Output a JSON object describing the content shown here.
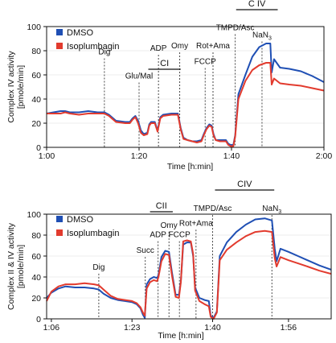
{
  "chart_data": [
    {
      "type": "line",
      "xlabel": "Time [h:min]",
      "ylabel": "Complex IV activity\n[pmole/min]",
      "xlim": [
        60,
        120
      ],
      "ylim": [
        0,
        100
      ],
      "xticks": [
        {
          "value": 60,
          "label": "1:00"
        },
        {
          "value": 80,
          "label": "1:20"
        },
        {
          "value": 100,
          "label": "1:40"
        },
        {
          "value": 120,
          "label": "2:00"
        }
      ],
      "yticks": [
        0,
        20,
        40,
        60,
        80,
        100
      ],
      "legend": {
        "placement": "top-left",
        "entries": [
          "DMSO",
          "Isoplumbagin"
        ]
      },
      "events": [
        {
          "x": 72.5,
          "label": "Dig",
          "label_y": 77
        },
        {
          "x": 80.0,
          "label": "Glu/Mal",
          "label_y": 57
        },
        {
          "x": 84.2,
          "label": "ADP",
          "label_y": 80
        },
        {
          "x": 88.8,
          "label": "Omy",
          "label_y": 82
        },
        {
          "x": 94.3,
          "label": "FCCP",
          "label_y": 69
        },
        {
          "x": 96.0,
          "label": "Rot+Ama",
          "label_y": 82
        },
        {
          "x": 100.8,
          "label": "TMPD/Asc",
          "label_y": 97
        },
        {
          "x": 106.6,
          "label": "NaN",
          "sub": "3",
          "label_y": 91
        }
      ],
      "brackets": [
        {
          "x1": 82.0,
          "x2": 89.0,
          "label": "CI"
        },
        {
          "x1": 101.0,
          "x2": 110.0,
          "label": "C IV"
        }
      ],
      "series": [
        {
          "name": "DMSO",
          "color": "#1f4fb4",
          "points": [
            [
              60,
              28
            ],
            [
              61.5,
              29
            ],
            [
              63,
              30
            ],
            [
              64,
              30
            ],
            [
              65,
              29
            ],
            [
              67,
              29
            ],
            [
              69,
              30
            ],
            [
              71,
              29
            ],
            [
              72.5,
              29
            ],
            [
              73.5,
              27
            ],
            [
              75,
              22
            ],
            [
              77,
              21
            ],
            [
              78,
              21
            ],
            [
              78.6,
              24
            ],
            [
              79.2,
              26
            ],
            [
              79.8,
              22
            ],
            [
              80.4,
              14
            ],
            [
              81,
              11
            ],
            [
              81.8,
              12
            ],
            [
              82.2,
              19
            ],
            [
              82.6,
              21
            ],
            [
              83.4,
              21
            ],
            [
              84,
              14
            ],
            [
              84.6,
              25
            ],
            [
              85.2,
              27
            ],
            [
              87,
              28
            ],
            [
              88.4,
              28
            ],
            [
              89,
              16
            ],
            [
              89.6,
              8
            ],
            [
              90.5,
              6
            ],
            [
              91.5,
              5
            ],
            [
              92.5,
              5
            ],
            [
              93.5,
              6
            ],
            [
              94,
              11
            ],
            [
              94.6,
              16
            ],
            [
              95.2,
              19
            ],
            [
              95.7,
              18
            ],
            [
              96.1,
              11
            ],
            [
              96.6,
              6
            ],
            [
              97.5,
              6
            ],
            [
              98.8,
              6
            ],
            [
              99.3,
              3
            ],
            [
              99.8,
              2
            ],
            [
              100.4,
              2
            ],
            [
              100.8,
              10
            ],
            [
              101.5,
              44
            ],
            [
              103,
              60
            ],
            [
              104.5,
              75
            ],
            [
              106,
              83
            ],
            [
              107.5,
              86
            ],
            [
              108.4,
              86
            ],
            [
              108.7,
              62
            ],
            [
              109.2,
              73
            ],
            [
              110.5,
              66
            ],
            [
              112.5,
              65
            ],
            [
              115,
              63
            ],
            [
              117.5,
              59
            ],
            [
              120,
              54
            ]
          ]
        },
        {
          "name": "Isoplumbagin",
          "color": "#e23b2e",
          "points": [
            [
              60,
              28
            ],
            [
              61.5,
              28
            ],
            [
              63,
              28
            ],
            [
              64,
              29
            ],
            [
              65,
              28
            ],
            [
              67,
              27
            ],
            [
              69,
              28
            ],
            [
              71,
              28
            ],
            [
              72.5,
              28
            ],
            [
              73.5,
              26
            ],
            [
              75,
              21
            ],
            [
              77,
              20
            ],
            [
              78,
              20
            ],
            [
              78.6,
              23
            ],
            [
              79.2,
              25
            ],
            [
              79.8,
              20
            ],
            [
              80.4,
              12
            ],
            [
              81,
              10
            ],
            [
              81.8,
              11
            ],
            [
              82.2,
              18
            ],
            [
              82.6,
              20
            ],
            [
              83.4,
              20
            ],
            [
              84,
              13
            ],
            [
              84.6,
              24
            ],
            [
              85.2,
              26
            ],
            [
              87,
              27
            ],
            [
              88.4,
              27
            ],
            [
              89,
              15
            ],
            [
              89.6,
              7
            ],
            [
              90.5,
              6
            ],
            [
              91.5,
              5
            ],
            [
              92.5,
              4
            ],
            [
              93.5,
              5
            ],
            [
              94,
              10
            ],
            [
              94.6,
              15
            ],
            [
              95.2,
              18
            ],
            [
              95.7,
              17
            ],
            [
              96.1,
              10
            ],
            [
              96.6,
              6
            ],
            [
              97.5,
              5
            ],
            [
              98.8,
              5
            ],
            [
              99.3,
              2
            ],
            [
              99.8,
              1
            ],
            [
              100.4,
              1
            ],
            [
              100.8,
              9
            ],
            [
              101.5,
              40
            ],
            [
              103,
              55
            ],
            [
              104.5,
              64
            ],
            [
              106,
              68
            ],
            [
              107.5,
              70
            ],
            [
              108.4,
              70
            ],
            [
              108.7,
              52
            ],
            [
              109.2,
              57
            ],
            [
              110.5,
              53
            ],
            [
              112.5,
              52
            ],
            [
              115,
              51
            ],
            [
              117.5,
              49
            ],
            [
              120,
              47
            ]
          ]
        }
      ]
    },
    {
      "type": "line",
      "xlabel": "Time [h:min]",
      "ylabel": "Complex II & IV activity\n[pmole/min]",
      "xlim": [
        65,
        125
      ],
      "ylim": [
        0,
        100
      ],
      "xticks": [
        {
          "value": 66,
          "label": "1:06"
        },
        {
          "value": 83,
          "label": "1:23"
        },
        {
          "value": 100,
          "label": "1:40"
        },
        {
          "value": 116,
          "label": "1:56"
        }
      ],
      "yticks": [
        0,
        20,
        40,
        60,
        80,
        100
      ],
      "legend": {
        "placement": "top-left",
        "entries": [
          "DMSO",
          "Isoplumbagin"
        ]
      },
      "events": [
        {
          "x": 76.0,
          "label": "Dig",
          "label_y": 47
        },
        {
          "x": 85.8,
          "label": "Succ",
          "label_y": 63
        },
        {
          "x": 88.5,
          "label": "ADP",
          "label_y": 78
        },
        {
          "x": 90.8,
          "label": "Omy",
          "label_y": 87
        },
        {
          "x": 93.0,
          "label": "FCCP",
          "label_y": 78
        },
        {
          "x": 96.5,
          "label": "Rot+Ama",
          "label_y": 89
        },
        {
          "x": 100.0,
          "label": "TMPD/Asc",
          "label_y": 103
        },
        {
          "x": 112.5,
          "label": "NaN",
          "sub": "3",
          "label_y": 103
        }
      ],
      "brackets": [
        {
          "x1": 86.8,
          "x2": 91.6,
          "label": "CII"
        },
        {
          "x1": 100.5,
          "x2": 113.0,
          "label": "CIV"
        }
      ],
      "series": [
        {
          "name": "DMSO",
          "color": "#1f4fb4",
          "points": [
            [
              65,
              20
            ],
            [
              66,
              25
            ],
            [
              67.5,
              29
            ],
            [
              69,
              31
            ],
            [
              71,
              30
            ],
            [
              73,
              30
            ],
            [
              75,
              29
            ],
            [
              76,
              28
            ],
            [
              77,
              24
            ],
            [
              78.5,
              20
            ],
            [
              80,
              18
            ],
            [
              81.5,
              17
            ],
            [
              83,
              16
            ],
            [
              84,
              14
            ],
            [
              84.8,
              10
            ],
            [
              85.3,
              4
            ],
            [
              85.7,
              1
            ],
            [
              86.1,
              33
            ],
            [
              86.8,
              38
            ],
            [
              87.6,
              40
            ],
            [
              88.3,
              39
            ],
            [
              88.6,
              42
            ],
            [
              89.2,
              59
            ],
            [
              90,
              65
            ],
            [
              90.8,
              64
            ],
            [
              91.4,
              45
            ],
            [
              92.2,
              23
            ],
            [
              92.9,
              23
            ],
            [
              93.3,
              36
            ],
            [
              93.8,
              71
            ],
            [
              94.6,
              73
            ],
            [
              95.4,
              73
            ],
            [
              95.9,
              60
            ],
            [
              96.3,
              30
            ],
            [
              97.2,
              20
            ],
            [
              98.3,
              18
            ],
            [
              99.2,
              17
            ],
            [
              99.6,
              3
            ],
            [
              100.2,
              1
            ],
            [
              100.9,
              7
            ],
            [
              101.5,
              60
            ],
            [
              103,
              73
            ],
            [
              105,
              83
            ],
            [
              107,
              90
            ],
            [
              109,
              95
            ],
            [
              111,
              96
            ],
            [
              112.5,
              94
            ],
            [
              113.1,
              67
            ],
            [
              113.5,
              55
            ],
            [
              114.3,
              67
            ],
            [
              116,
              64
            ],
            [
              118,
              60
            ],
            [
              120,
              56
            ],
            [
              122.5,
              51
            ],
            [
              125,
              47
            ]
          ]
        },
        {
          "name": "Isoplumbagin",
          "color": "#e23b2e",
          "points": [
            [
              65,
              17
            ],
            [
              66,
              26
            ],
            [
              67.5,
              31
            ],
            [
              69,
              33
            ],
            [
              71,
              33
            ],
            [
              73,
              34
            ],
            [
              75,
              33
            ],
            [
              76,
              32
            ],
            [
              77,
              28
            ],
            [
              78.5,
              22
            ],
            [
              80,
              19
            ],
            [
              81.5,
              18
            ],
            [
              83,
              17
            ],
            [
              84,
              15
            ],
            [
              84.8,
              11
            ],
            [
              85.3,
              6
            ],
            [
              85.7,
              3
            ],
            [
              86.1,
              29
            ],
            [
              86.8,
              35
            ],
            [
              87.6,
              37
            ],
            [
              88.3,
              36
            ],
            [
              88.6,
              40
            ],
            [
              89.2,
              55
            ],
            [
              90,
              62
            ],
            [
              90.8,
              61
            ],
            [
              91.4,
              42
            ],
            [
              92.2,
              21
            ],
            [
              92.9,
              20
            ],
            [
              93.3,
              35
            ],
            [
              93.8,
              74
            ],
            [
              94.6,
              75
            ],
            [
              95.4,
              74
            ],
            [
              95.9,
              62
            ],
            [
              96.3,
              27
            ],
            [
              97.2,
              17
            ],
            [
              98.3,
              14
            ],
            [
              99.2,
              12
            ],
            [
              99.6,
              2
            ],
            [
              100.2,
              0
            ],
            [
              100.9,
              6
            ],
            [
              101.5,
              56
            ],
            [
              103,
              66
            ],
            [
              105,
              73
            ],
            [
              107,
              79
            ],
            [
              109,
              83
            ],
            [
              111,
              84
            ],
            [
              112.5,
              83
            ],
            [
              113.1,
              58
            ],
            [
              113.5,
              50
            ],
            [
              114.3,
              59
            ],
            [
              116,
              56
            ],
            [
              118,
              53
            ],
            [
              120,
              50
            ],
            [
              122.5,
              46
            ],
            [
              125,
              43
            ]
          ]
        }
      ]
    }
  ]
}
